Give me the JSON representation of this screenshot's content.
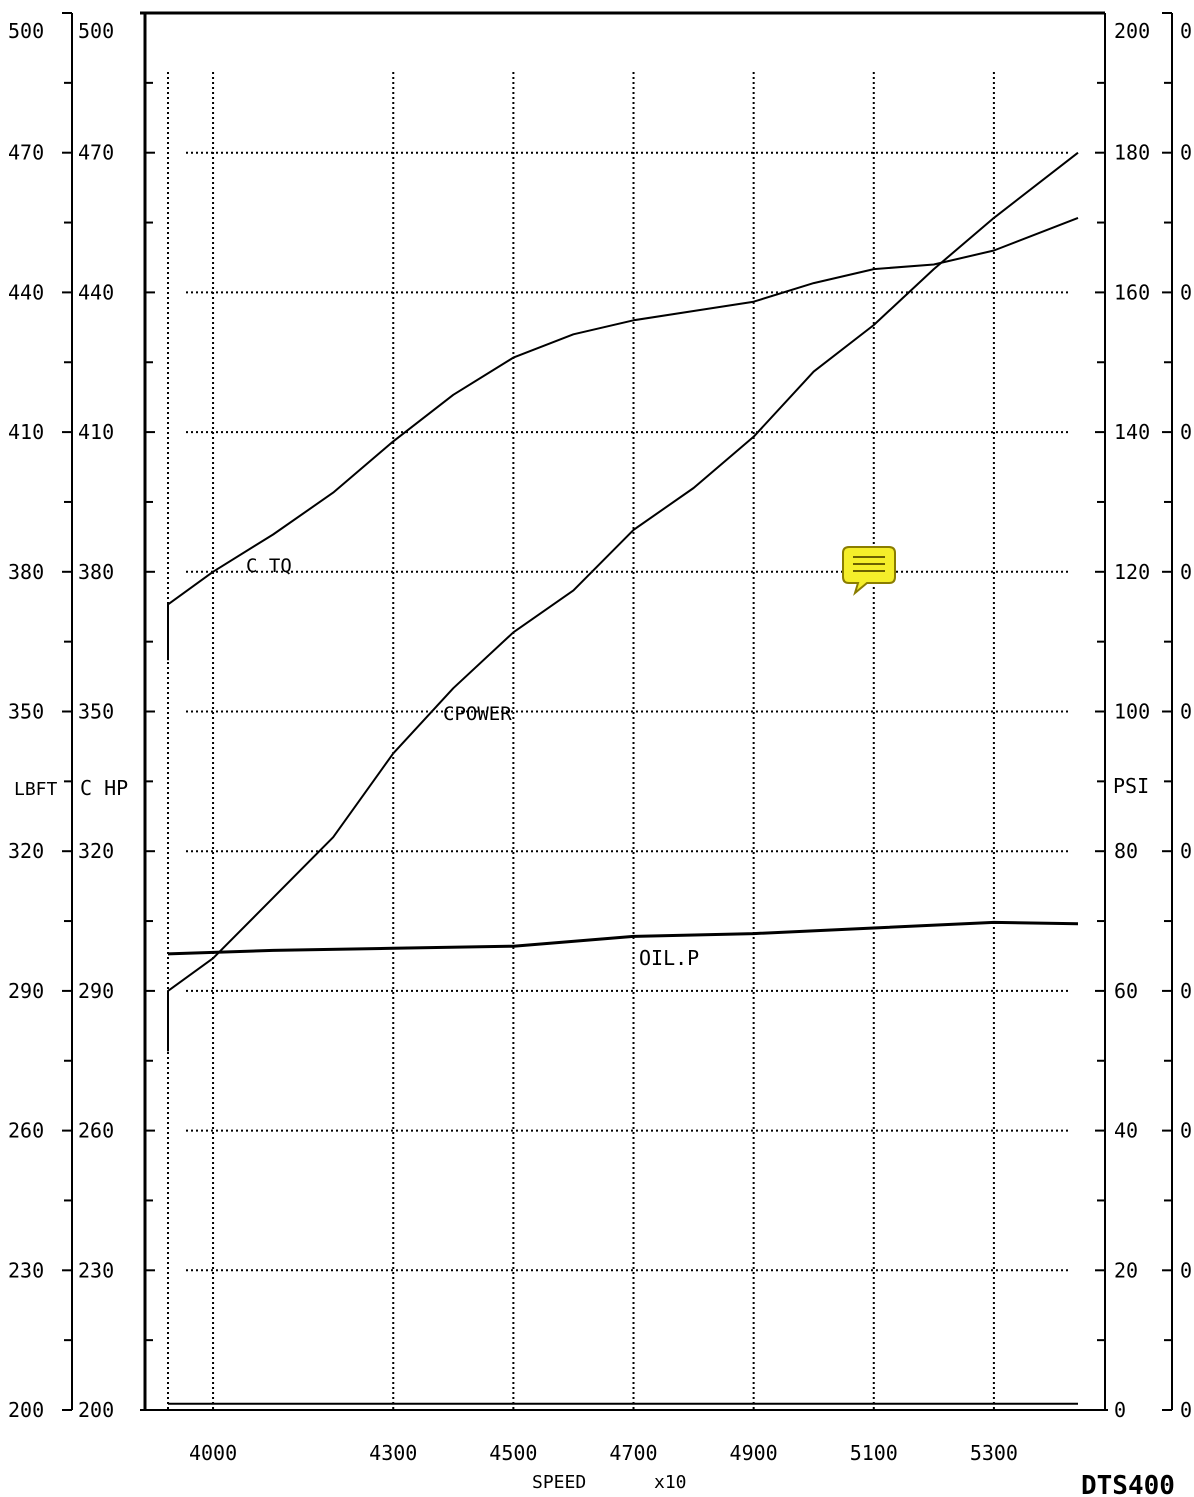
{
  "chart_data": {
    "type": "line",
    "xlabel": "SPEED",
    "xlabel_multiplier": "x10",
    "xlim": [
      3925,
      5440
    ],
    "x_ticks": [
      "4000",
      "4300",
      "4500",
      "4700",
      "4900",
      "5100",
      "5300"
    ],
    "left_axis_1": {
      "label": "LBFT",
      "range": [
        200,
        500
      ],
      "ticks": [
        "500",
        "470",
        "440",
        "410",
        "380",
        "350",
        "320",
        "290",
        "260",
        "230",
        "200"
      ]
    },
    "left_axis_2": {
      "label": "C HP",
      "range": [
        200,
        500
      ],
      "ticks": [
        "500",
        "470",
        "440",
        "410",
        "380",
        "350",
        "320",
        "290",
        "260",
        "230",
        "200"
      ]
    },
    "right_axis_1": {
      "label": "PSI",
      "range": [
        0,
        200
      ],
      "ticks": [
        "200",
        "180",
        "160",
        "140",
        "120",
        "100",
        "80",
        "60",
        "40",
        "20",
        "0"
      ]
    },
    "right_axis_2": {
      "ticks": [
        "0",
        "0",
        "0",
        "0",
        "0",
        "0",
        "0",
        "0",
        "0",
        "0",
        "0"
      ]
    },
    "grid": true,
    "series": [
      {
        "name": "C TQ",
        "axis": "LBFT",
        "points": [
          [
            3925,
            361
          ],
          [
            3925,
            373
          ],
          [
            4000,
            380
          ],
          [
            4100,
            388
          ],
          [
            4200,
            397
          ],
          [
            4300,
            408
          ],
          [
            4400,
            418
          ],
          [
            4500,
            426
          ],
          [
            4600,
            431
          ],
          [
            4700,
            434
          ],
          [
            4800,
            436
          ],
          [
            4900,
            438
          ],
          [
            5000,
            442
          ],
          [
            5100,
            445
          ],
          [
            5200,
            446
          ],
          [
            5300,
            449
          ],
          [
            5440,
            456
          ]
        ]
      },
      {
        "name": "CPOWER",
        "axis": "C HP",
        "points": [
          [
            3925,
            277
          ],
          [
            3925,
            290
          ],
          [
            4000,
            297
          ],
          [
            4100,
            310
          ],
          [
            4200,
            323
          ],
          [
            4300,
            341
          ],
          [
            4400,
            355
          ],
          [
            4500,
            367
          ],
          [
            4600,
            376
          ],
          [
            4700,
            389
          ],
          [
            4800,
            398
          ],
          [
            4900,
            409
          ],
          [
            5000,
            423
          ],
          [
            5100,
            433
          ],
          [
            5200,
            445
          ],
          [
            5300,
            456
          ],
          [
            5440,
            470
          ]
        ]
      },
      {
        "name": "OIL.P",
        "axis": "PSI",
        "points": [
          [
            3925,
            65.3
          ],
          [
            4100,
            65.8
          ],
          [
            4300,
            66.1
          ],
          [
            4500,
            66.4
          ],
          [
            4700,
            67.8
          ],
          [
            4900,
            68.2
          ],
          [
            5100,
            69.0
          ],
          [
            5300,
            69.8
          ],
          [
            5440,
            69.6
          ]
        ]
      },
      {
        "name": "",
        "axis": "PSI",
        "points": [
          [
            3925,
            0.9
          ],
          [
            5440,
            0.9
          ]
        ]
      }
    ]
  },
  "logo": "DTS400"
}
